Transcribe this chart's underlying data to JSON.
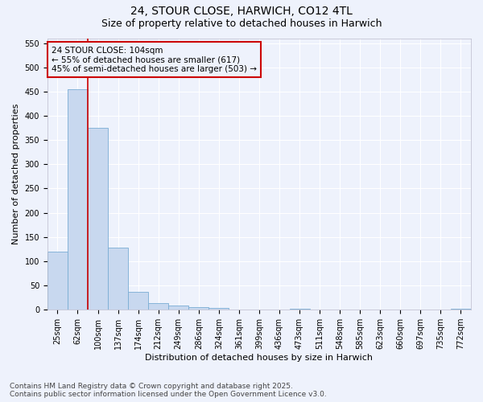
{
  "title_line1": "24, STOUR CLOSE, HARWICH, CO12 4TL",
  "title_line2": "Size of property relative to detached houses in Harwich",
  "xlabel": "Distribution of detached houses by size in Harwich",
  "ylabel": "Number of detached properties",
  "categories": [
    "25sqm",
    "62sqm",
    "100sqm",
    "137sqm",
    "174sqm",
    "212sqm",
    "249sqm",
    "286sqm",
    "324sqm",
    "361sqm",
    "399sqm",
    "436sqm",
    "473sqm",
    "511sqm",
    "548sqm",
    "585sqm",
    "623sqm",
    "660sqm",
    "697sqm",
    "735sqm",
    "772sqm"
  ],
  "values": [
    120,
    455,
    375,
    128,
    37,
    14,
    8,
    5,
    3,
    1,
    1,
    0,
    2,
    0,
    0,
    0,
    0,
    0,
    0,
    0,
    2
  ],
  "bar_color": "#c8d8ef",
  "bar_edge_color": "#7aadd4",
  "vline_color": "#cc0000",
  "annotation_text": "24 STOUR CLOSE: 104sqm\n← 55% of detached houses are smaller (617)\n45% of semi-detached houses are larger (503) →",
  "annotation_box_edgecolor": "#cc0000",
  "ylim": [
    0,
    560
  ],
  "yticks": [
    0,
    50,
    100,
    150,
    200,
    250,
    300,
    350,
    400,
    450,
    500,
    550
  ],
  "background_color": "#eef2fc",
  "grid_color": "#ffffff",
  "footer_line1": "Contains HM Land Registry data © Crown copyright and database right 2025.",
  "footer_line2": "Contains public sector information licensed under the Open Government Licence v3.0.",
  "title_fontsize": 10,
  "subtitle_fontsize": 9,
  "axis_label_fontsize": 8,
  "tick_fontsize": 7,
  "annotation_fontsize": 7.5,
  "footer_fontsize": 6.5
}
